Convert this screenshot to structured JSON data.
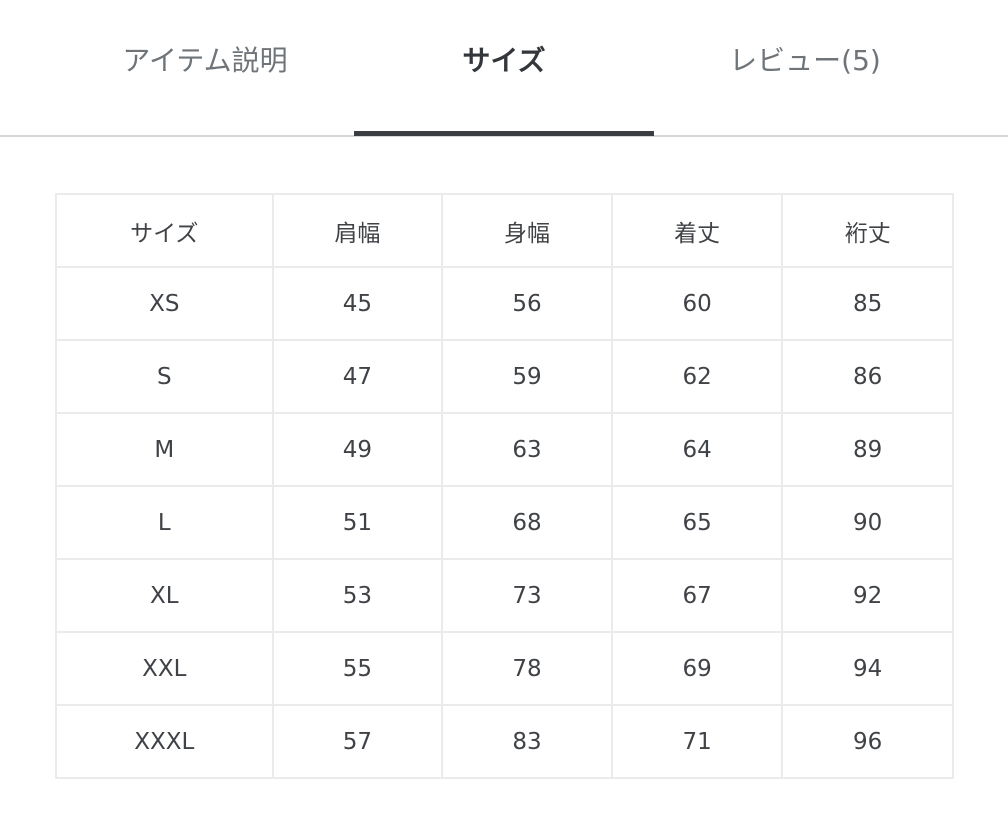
{
  "tabs": [
    {
      "label": "アイテム説明",
      "active": false
    },
    {
      "label": "サイズ",
      "active": true
    },
    {
      "label": "レビュー(5)",
      "active": false
    }
  ],
  "size_table": {
    "headers": [
      "サイズ",
      "肩幅",
      "身幅",
      "着丈",
      "裄丈"
    ],
    "rows": [
      [
        "XS",
        "45",
        "56",
        "60",
        "85"
      ],
      [
        "S",
        "47",
        "59",
        "62",
        "86"
      ],
      [
        "M",
        "49",
        "63",
        "64",
        "89"
      ],
      [
        "L",
        "51",
        "68",
        "65",
        "90"
      ],
      [
        "XL",
        "53",
        "73",
        "67",
        "92"
      ],
      [
        "XXL",
        "55",
        "78",
        "69",
        "94"
      ],
      [
        "XXXL",
        "57",
        "83",
        "71",
        "96"
      ]
    ]
  }
}
